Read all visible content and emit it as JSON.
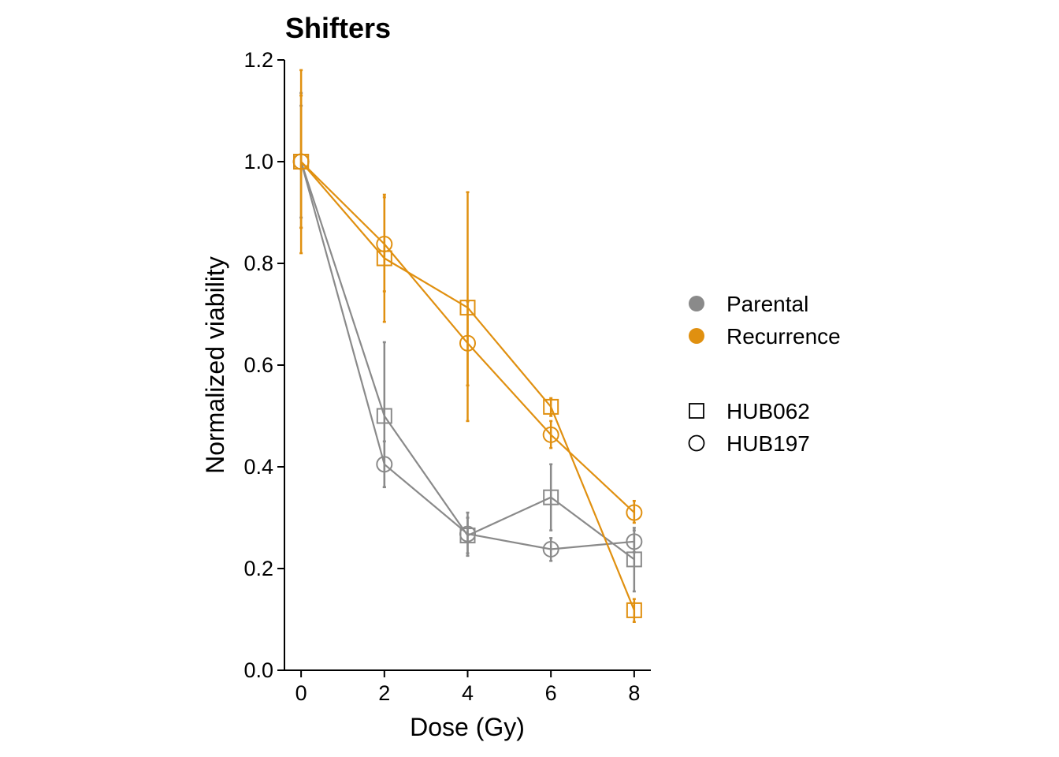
{
  "chart_data": {
    "type": "line",
    "title": "Shifters",
    "xlabel": "Dose (Gy)",
    "ylabel": "Normalized viability",
    "xlim": [
      -0.4,
      8.4
    ],
    "ylim": [
      0,
      1.2
    ],
    "xticks": [
      "0",
      "2",
      "4",
      "6",
      "8"
    ],
    "yticks": [
      "0.0",
      "0.2",
      "0.4",
      "0.6",
      "0.8",
      "1.0",
      "1.2"
    ],
    "grid": false,
    "legend_position": "right",
    "legend": {
      "color_entries": [
        {
          "label": "Parental",
          "color": "#8a8a8a"
        },
        {
          "label": "Recurrence",
          "color": "#e09010"
        }
      ],
      "shape_entries": [
        {
          "label": "HUB062",
          "shape": "square"
        },
        {
          "label": "HUB197",
          "shape": "circle"
        }
      ]
    },
    "series": [
      {
        "name": "Parental HUB062",
        "condition": "Parental",
        "line": "HUB062",
        "color": "#8a8a8a",
        "shape": "square",
        "x": [
          0,
          2,
          4,
          6,
          8
        ],
        "y": [
          1.0,
          0.5,
          0.265,
          0.34,
          0.218
        ],
        "err_low": [
          0.87,
          0.36,
          0.23,
          0.275,
          0.155
        ],
        "err_high": [
          1.135,
          0.645,
          0.31,
          0.405,
          0.28
        ]
      },
      {
        "name": "Parental HUB197",
        "condition": "Parental",
        "line": "HUB197",
        "color": "#8a8a8a",
        "shape": "circle",
        "x": [
          0,
          2,
          4,
          6,
          8
        ],
        "y": [
          1.0,
          0.405,
          0.268,
          0.238,
          0.253
        ],
        "err_low": [
          0.89,
          0.36,
          0.225,
          0.215,
          0.232
        ],
        "err_high": [
          1.11,
          0.45,
          0.3,
          0.26,
          0.275
        ]
      },
      {
        "name": "Recurrence HUB062",
        "condition": "Recurrence",
        "line": "HUB062",
        "color": "#e09010",
        "shape": "square",
        "x": [
          0,
          2,
          4,
          6,
          8
        ],
        "y": [
          1.0,
          0.81,
          0.713,
          0.518,
          0.118
        ],
        "err_low": [
          0.82,
          0.685,
          0.49,
          0.5,
          0.095
        ],
        "err_high": [
          1.18,
          0.935,
          0.94,
          0.535,
          0.14
        ]
      },
      {
        "name": "Recurrence HUB197",
        "condition": "Recurrence",
        "line": "HUB197",
        "color": "#e09010",
        "shape": "circle",
        "x": [
          0,
          2,
          4,
          6,
          8
        ],
        "y": [
          1.0,
          0.838,
          0.643,
          0.463,
          0.31
        ],
        "err_low": [
          0.87,
          0.745,
          0.56,
          0.437,
          0.29
        ],
        "err_high": [
          1.13,
          0.93,
          0.725,
          0.49,
          0.333
        ]
      }
    ]
  }
}
